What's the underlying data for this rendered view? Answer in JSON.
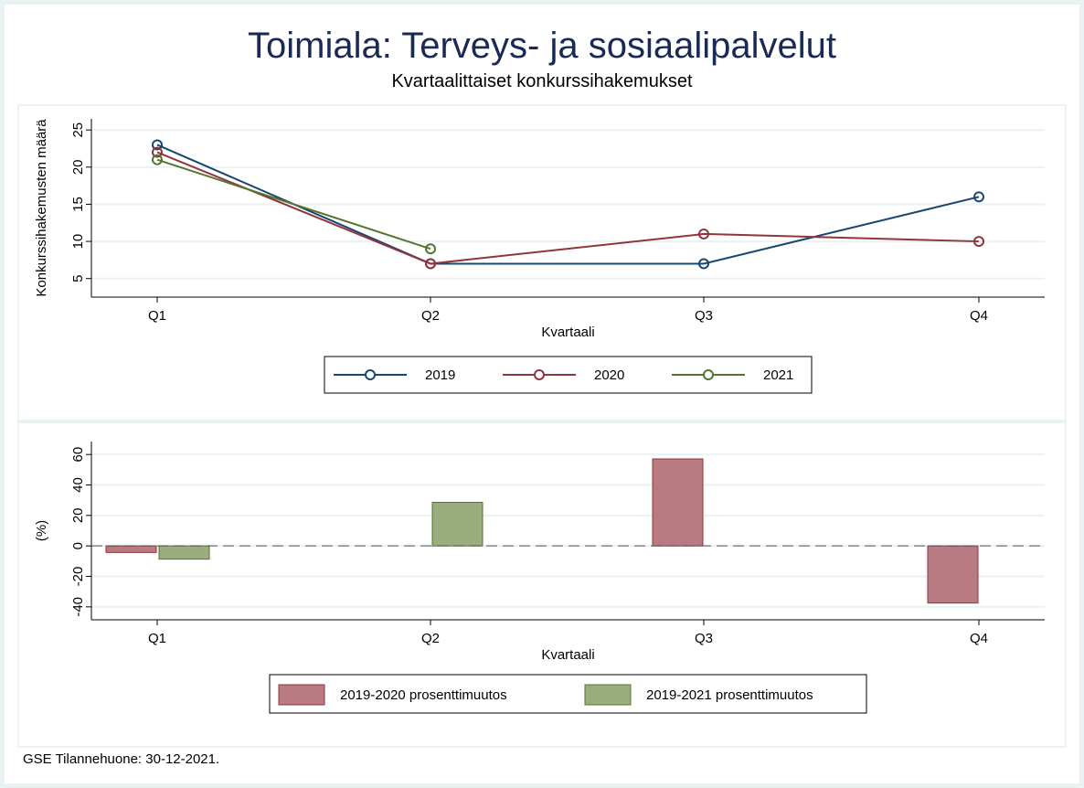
{
  "chart_data": [
    {
      "type": "line",
      "title": "Toimiala: Terveys- ja sosiaalipalvelut",
      "subtitle": "Kvartaalittaiset konkurssihakemukset",
      "xlabel": "Kvartaali",
      "ylabel": "Konkurssihakemusten määrä",
      "categories": [
        "Q1",
        "Q2",
        "Q3",
        "Q4"
      ],
      "yticks": [
        5,
        10,
        15,
        20,
        25
      ],
      "ylim": [
        2.5,
        26.5
      ],
      "grid": true,
      "legend": "bottom",
      "series": [
        {
          "name": "2019",
          "color": "#1a476f",
          "values": [
            23,
            7,
            7,
            16
          ]
        },
        {
          "name": "2020",
          "color": "#90353b",
          "values": [
            22,
            7,
            11,
            10
          ]
        },
        {
          "name": "2021",
          "color": "#55752f",
          "values": [
            21,
            9,
            null,
            null
          ]
        }
      ]
    },
    {
      "type": "bar",
      "xlabel": "Kvartaali",
      "ylabel": "(%)",
      "categories": [
        "Q1",
        "Q2",
        "Q3",
        "Q4"
      ],
      "yticks": [
        -40,
        -20,
        0,
        20,
        40,
        60
      ],
      "ylim": [
        -48.5,
        68.5
      ],
      "grid": true,
      "legend": "bottom",
      "series": [
        {
          "name": "2019-2020 prosenttimuutos",
          "color": "#90353b",
          "fill": "#b87b82",
          "values": [
            -4.3,
            0,
            57.1,
            -37.5
          ]
        },
        {
          "name": "2019-2021 prosenttimuutos",
          "color": "#55752f",
          "fill": "#99ad7f",
          "values": [
            -8.7,
            28.6,
            null,
            null
          ]
        }
      ]
    }
  ],
  "footer": "GSE Tilannehuone: 30-12-2021."
}
